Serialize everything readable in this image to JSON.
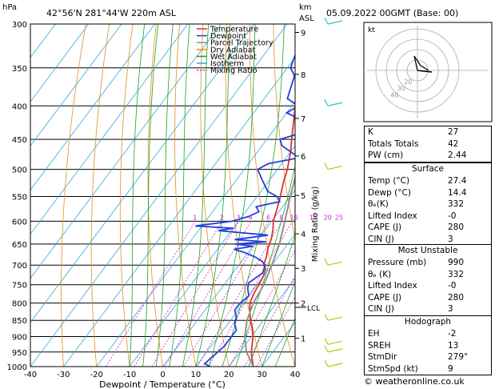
{
  "header": {
    "location": "42°56'N  281°44'W  220m  ASL",
    "date": "05.09.2022  00GMT  (Base: 00)",
    "hpa_label": "hPa",
    "km_label": "km",
    "asl_label": "ASL",
    "mixing_label": "Mixing Ratio (g/kg)",
    "lcl_label": "LCL"
  },
  "chart_data": {
    "type": "skew-t",
    "xlabel": "Dewpoint / Temperature (°C)",
    "x_ticks": [
      -40,
      -30,
      -20,
      -10,
      0,
      10,
      20,
      30,
      40
    ],
    "p_ticks": [
      300,
      350,
      400,
      450,
      500,
      550,
      600,
      650,
      700,
      750,
      800,
      850,
      900,
      950,
      1000
    ],
    "km_ticks": [
      {
        "label": "9",
        "p": 309
      },
      {
        "label": "8",
        "p": 358
      },
      {
        "label": "7",
        "p": 418
      },
      {
        "label": "6",
        "p": 477
      },
      {
        "label": "5",
        "p": 548
      },
      {
        "label": "4",
        "p": 627
      },
      {
        "label": "3",
        "p": 708
      },
      {
        "label": "2",
        "p": 800
      },
      {
        "label": "1",
        "p": 905
      }
    ],
    "mixing_ratios": [
      "1",
      "2",
      "3",
      "4",
      "6",
      "8",
      "10",
      "15",
      "20",
      "25"
    ],
    "legend": [
      "Temperature",
      "Dewpoint",
      "Parcel Trajectory",
      "Dry Adiabat",
      "Wet Adiabat",
      "Isotherm",
      "Mixing Ratio"
    ],
    "series": [
      {
        "name": "Temperature",
        "color": "#e03030",
        "points": [
          [
            1000,
            27.4
          ],
          [
            970,
            25
          ],
          [
            950,
            23.5
          ],
          [
            925,
            22
          ],
          [
            900,
            20.5
          ],
          [
            870,
            18
          ],
          [
            850,
            16
          ],
          [
            820,
            13.5
          ],
          [
            800,
            12
          ],
          [
            775,
            11
          ],
          [
            750,
            10.5
          ],
          [
            730,
            10
          ],
          [
            710,
            9
          ],
          [
            700,
            7.5
          ],
          [
            680,
            6.5
          ],
          [
            660,
            5
          ],
          [
            640,
            4
          ],
          [
            620,
            2.5
          ],
          [
            600,
            0.5
          ],
          [
            570,
            -1.5
          ],
          [
            550,
            -3
          ],
          [
            520,
            -5.5
          ],
          [
            500,
            -7
          ],
          [
            470,
            -10
          ],
          [
            450,
            -12.5
          ],
          [
            430,
            -15
          ],
          [
            400,
            -19
          ],
          [
            370,
            -23
          ],
          [
            350,
            -26.5
          ],
          [
            320,
            -31
          ],
          [
            300,
            -34
          ]
        ]
      },
      {
        "name": "Dewpoint",
        "color": "#2040e0",
        "points": [
          [
            1000,
            14.4
          ],
          [
            990,
            12
          ],
          [
            960,
            13
          ],
          [
            930,
            14
          ],
          [
            900,
            14
          ],
          [
            880,
            14
          ],
          [
            860,
            12
          ],
          [
            840,
            11
          ],
          [
            820,
            9
          ],
          [
            800,
            9
          ],
          [
            780,
            10
          ],
          [
            760,
            8
          ],
          [
            745,
            7
          ],
          [
            720,
            9
          ],
          [
            700,
            8
          ],
          [
            690,
            6
          ],
          [
            680,
            3
          ],
          [
            670,
            -1
          ],
          [
            662,
            -5
          ],
          [
            655,
            0
          ],
          [
            650,
            -6
          ],
          [
            645,
            3
          ],
          [
            640,
            -7
          ],
          [
            630,
            2
          ],
          [
            620,
            -14
          ],
          [
            615,
            -10
          ],
          [
            610,
            -22
          ],
          [
            600,
            -12
          ],
          [
            590,
            -8
          ],
          [
            580,
            -6
          ],
          [
            570,
            -8
          ],
          [
            560,
            -2
          ],
          [
            550,
            -4
          ],
          [
            540,
            -8
          ],
          [
            520,
            -12
          ],
          [
            500,
            -16
          ],
          [
            490,
            -14
          ],
          [
            480,
            -6
          ],
          [
            470,
            -10
          ],
          [
            460,
            -14
          ],
          [
            450,
            -16
          ],
          [
            440,
            -11
          ],
          [
            430,
            -8
          ],
          [
            420,
            -14
          ],
          [
            410,
            -20
          ],
          [
            400,
            -18
          ],
          [
            390,
            -23
          ],
          [
            380,
            -24
          ],
          [
            360,
            -26
          ],
          [
            350,
            -29
          ],
          [
            330,
            -31
          ],
          [
            310,
            -31
          ],
          [
            300,
            -33
          ]
        ]
      },
      {
        "name": "Parcel Trajectory",
        "color": "#909090",
        "points": [
          [
            1000,
            27.4
          ],
          [
            950,
            22
          ],
          [
            900,
            18
          ],
          [
            850,
            15
          ],
          [
            800,
            13
          ],
          [
            750,
            12
          ],
          [
            700,
            10
          ],
          [
            650,
            7.5
          ],
          [
            600,
            4
          ],
          [
            550,
            0
          ],
          [
            500,
            -4
          ],
          [
            450,
            -9
          ],
          [
            400,
            -15
          ],
          [
            350,
            -22
          ],
          [
            300,
            -31
          ]
        ]
      }
    ]
  },
  "hodograph": {
    "label": "kt",
    "ring_labels": [
      "40",
      "30",
      "20"
    ]
  },
  "stats": [
    {
      "label": "K",
      "value": "27"
    },
    {
      "label": "Totals Totals",
      "value": "42"
    },
    {
      "label": "PW (cm)",
      "value": "2.44"
    }
  ],
  "surface": {
    "title": "Surface",
    "rows": [
      {
        "label": "Temp (°C)",
        "value": "27.4"
      },
      {
        "label": "Dewp (°C)",
        "value": "14.4"
      },
      {
        "label": "θₑ(K)",
        "value": "332"
      },
      {
        "label": "Lifted Index",
        "value": "-0"
      },
      {
        "label": "CAPE (J)",
        "value": "280"
      },
      {
        "label": "CIN (J)",
        "value": "3"
      }
    ]
  },
  "most_unstable": {
    "title": "Most Unstable",
    "rows": [
      {
        "label": "Pressure (mb)",
        "value": "990"
      },
      {
        "label": "θₑ (K)",
        "value": "332"
      },
      {
        "label": "Lifted Index",
        "value": "-0"
      },
      {
        "label": "CAPE (J)",
        "value": "280"
      },
      {
        "label": "CIN (J)",
        "value": "3"
      }
    ]
  },
  "hodo_table": {
    "title": "Hodograph",
    "rows": [
      {
        "label": "EH",
        "value": "-2"
      },
      {
        "label": "SREH",
        "value": "13"
      },
      {
        "label": "StmDir",
        "value": "279°"
      },
      {
        "label": "StmSpd (kt)",
        "value": "9"
      }
    ]
  },
  "credit": "© weatheronline.co.uk"
}
